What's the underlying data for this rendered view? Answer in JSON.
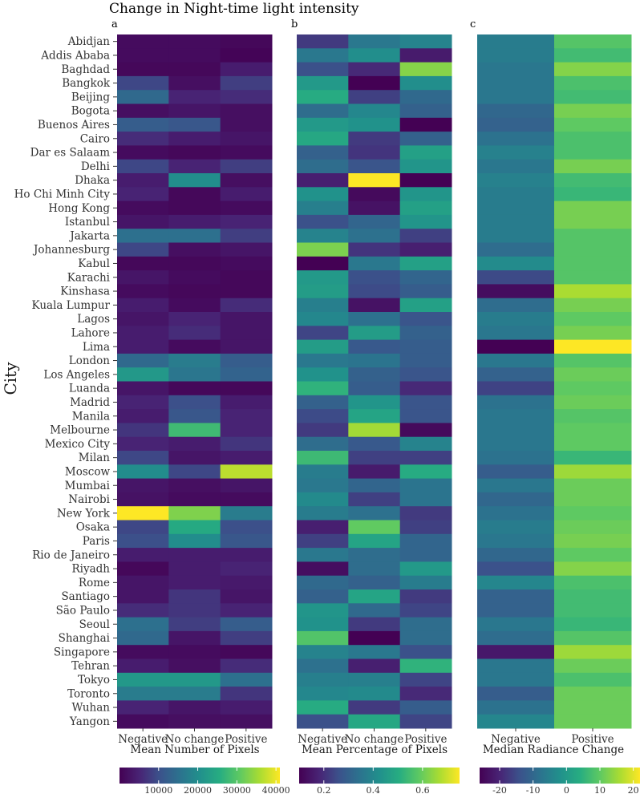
{
  "chart_data": {
    "type": "heatmap",
    "title": "Change in Night-time light intensity",
    "ylabel": "City",
    "cities": [
      "Abidjan",
      "Addis Ababa",
      "Baghdad",
      "Bangkok",
      "Beijing",
      "Bogota",
      "Buenos Aires",
      "Cairo",
      "Dar es Salaam",
      "Delhi",
      "Dhaka",
      "Ho Chi Minh City",
      "Hong Kong",
      "Istanbul",
      "Jakarta",
      "Johannesburg",
      "Kabul",
      "Karachi",
      "Kinshasa",
      "Kuala Lumpur",
      "Lagos",
      "Lahore",
      "Lima",
      "London",
      "Los Angeles",
      "Luanda",
      "Madrid",
      "Manila",
      "Melbourne",
      "Mexico City",
      "Milan",
      "Moscow",
      "Mumbai",
      "Nairobi",
      "New York",
      "Osaka",
      "Paris",
      "Rio de Janeiro",
      "Riyadh",
      "Rome",
      "Santiago",
      "São Paulo",
      "Seoul",
      "Shanghai",
      "Singapore",
      "Tehran",
      "Tokyo",
      "Toronto",
      "Wuhan",
      "Yangon"
    ],
    "panels": [
      {
        "letter": "a",
        "xlabel": "Mean Number of Pixels",
        "columns": [
          "Negative",
          "No change",
          "Positive"
        ],
        "colorbar": {
          "min": 0,
          "max": 41000,
          "ticks": [
            10000,
            20000,
            30000,
            40000
          ],
          "tick_labels": [
            "10000",
            "20000",
            "30000",
            "40000"
          ]
        },
        "values": [
          [
            1500,
            1500,
            1000
          ],
          [
            1500,
            1500,
            500
          ],
          [
            1000,
            1000,
            4000
          ],
          [
            9000,
            2000,
            8000
          ],
          [
            14000,
            5000,
            6000
          ],
          [
            2000,
            3000,
            2000
          ],
          [
            12000,
            11000,
            2000
          ],
          [
            6000,
            4000,
            3000
          ],
          [
            1500,
            1000,
            1500
          ],
          [
            9000,
            5000,
            8000
          ],
          [
            4000,
            20000,
            2000
          ],
          [
            5000,
            1000,
            4000
          ],
          [
            1500,
            1000,
            1500
          ],
          [
            3000,
            4000,
            5000
          ],
          [
            15000,
            15000,
            8000
          ],
          [
            9000,
            2000,
            3000
          ],
          [
            1000,
            1000,
            1500
          ],
          [
            3000,
            1500,
            1000
          ],
          [
            1500,
            1000,
            1000
          ],
          [
            4000,
            1500,
            6000
          ],
          [
            3000,
            5000,
            3000
          ],
          [
            4000,
            6000,
            3000
          ],
          [
            4000,
            1500,
            3000
          ],
          [
            14000,
            17000,
            12000
          ],
          [
            22000,
            16000,
            13000
          ],
          [
            3000,
            1000,
            1000
          ],
          [
            5000,
            10000,
            4000
          ],
          [
            4000,
            11000,
            5000
          ],
          [
            7000,
            28000,
            5000
          ],
          [
            5000,
            4000,
            7000
          ],
          [
            9000,
            3000,
            4000
          ],
          [
            20000,
            9000,
            37000
          ],
          [
            3000,
            2000,
            3000
          ],
          [
            2500,
            1500,
            1500
          ],
          [
            41000,
            33000,
            17000
          ],
          [
            9000,
            25000,
            10000
          ],
          [
            10000,
            20000,
            11000
          ],
          [
            4000,
            4000,
            4000
          ],
          [
            1000,
            4000,
            5000
          ],
          [
            3000,
            4000,
            3500
          ],
          [
            3000,
            7000,
            3000
          ],
          [
            6000,
            7000,
            5000
          ],
          [
            15000,
            8000,
            12000
          ],
          [
            14000,
            3000,
            8000
          ],
          [
            1500,
            1500,
            1000
          ],
          [
            4000,
            2000,
            6000
          ],
          [
            22000,
            22000,
            15000
          ],
          [
            17000,
            17000,
            7000
          ],
          [
            5000,
            3000,
            4000
          ],
          [
            1500,
            2000,
            2000
          ]
        ]
      },
      {
        "letter": "b",
        "xlabel": "Mean Percentage of Pixels",
        "columns": [
          "Negative",
          "No change",
          "Positive"
        ],
        "colorbar": {
          "min": 0.1,
          "max": 0.75,
          "ticks": [
            0.2,
            0.4,
            0.6
          ],
          "tick_labels": [
            "0.2",
            "0.4",
            "0.6"
          ]
        },
        "values": [
          [
            0.22,
            0.36,
            0.39
          ],
          [
            0.36,
            0.42,
            0.16
          ],
          [
            0.26,
            0.19,
            0.63
          ],
          [
            0.45,
            0.1,
            0.42
          ],
          [
            0.5,
            0.23,
            0.32
          ],
          [
            0.33,
            0.4,
            0.3
          ],
          [
            0.45,
            0.43,
            0.1
          ],
          [
            0.49,
            0.22,
            0.3
          ],
          [
            0.3,
            0.21,
            0.47
          ],
          [
            0.33,
            0.27,
            0.44
          ],
          [
            0.17,
            0.75,
            0.09
          ],
          [
            0.43,
            0.12,
            0.44
          ],
          [
            0.38,
            0.14,
            0.47
          ],
          [
            0.26,
            0.31,
            0.44
          ],
          [
            0.39,
            0.34,
            0.23
          ],
          [
            0.62,
            0.21,
            0.17
          ],
          [
            0.1,
            0.36,
            0.47
          ],
          [
            0.45,
            0.26,
            0.31
          ],
          [
            0.46,
            0.25,
            0.29
          ],
          [
            0.38,
            0.14,
            0.47
          ],
          [
            0.4,
            0.34,
            0.27
          ],
          [
            0.24,
            0.46,
            0.3
          ],
          [
            0.46,
            0.28,
            0.29
          ],
          [
            0.36,
            0.35,
            0.29
          ],
          [
            0.43,
            0.3,
            0.27
          ],
          [
            0.52,
            0.29,
            0.19
          ],
          [
            0.3,
            0.44,
            0.27
          ],
          [
            0.25,
            0.48,
            0.27
          ],
          [
            0.22,
            0.66,
            0.12
          ],
          [
            0.33,
            0.28,
            0.39
          ],
          [
            0.54,
            0.23,
            0.23
          ],
          [
            0.37,
            0.16,
            0.5
          ],
          [
            0.36,
            0.31,
            0.35
          ],
          [
            0.41,
            0.23,
            0.35
          ],
          [
            0.37,
            0.34,
            0.22
          ],
          [
            0.17,
            0.59,
            0.23
          ],
          [
            0.23,
            0.48,
            0.31
          ],
          [
            0.36,
            0.33,
            0.31
          ],
          [
            0.13,
            0.33,
            0.45
          ],
          [
            0.32,
            0.3,
            0.37
          ],
          [
            0.3,
            0.48,
            0.22
          ],
          [
            0.44,
            0.32,
            0.24
          ],
          [
            0.43,
            0.22,
            0.33
          ],
          [
            0.57,
            0.09,
            0.33
          ],
          [
            0.39,
            0.36,
            0.26
          ],
          [
            0.34,
            0.17,
            0.52
          ],
          [
            0.38,
            0.38,
            0.24
          ],
          [
            0.4,
            0.41,
            0.19
          ],
          [
            0.5,
            0.22,
            0.29
          ],
          [
            0.26,
            0.49,
            0.24
          ]
        ]
      },
      {
        "letter": "c",
        "xlabel": "Median Radiance Change",
        "columns": [
          "Negative",
          "Positive"
        ],
        "colorbar": {
          "min": -26,
          "max": 22,
          "ticks": [
            -20,
            -10,
            0,
            10,
            20
          ],
          "tick_labels": [
            "-20",
            "-10",
            "0",
            "10",
            "20"
          ]
        },
        "values": [
          [
            -6,
            9
          ],
          [
            -6,
            7
          ],
          [
            -7,
            13
          ],
          [
            -7,
            8
          ],
          [
            -7,
            7
          ],
          [
            -10,
            12
          ],
          [
            -11,
            10
          ],
          [
            -8,
            8
          ],
          [
            -5,
            8
          ],
          [
            -7,
            12
          ],
          [
            -5,
            7
          ],
          [
            -6,
            6
          ],
          [
            -6,
            12
          ],
          [
            -6,
            12
          ],
          [
            -6,
            9
          ],
          [
            -9,
            9
          ],
          [
            -3,
            9
          ],
          [
            -15,
            9
          ],
          [
            -24,
            16
          ],
          [
            -9,
            12
          ],
          [
            -6,
            10
          ],
          [
            -7,
            12
          ],
          [
            -26,
            22
          ],
          [
            -7,
            9
          ],
          [
            -11,
            11
          ],
          [
            -16,
            10
          ],
          [
            -8,
            11
          ],
          [
            -7,
            9
          ],
          [
            -7,
            10
          ],
          [
            -7,
            10
          ],
          [
            -8,
            6
          ],
          [
            -12,
            15
          ],
          [
            -7,
            11
          ],
          [
            -10,
            11
          ],
          [
            -8,
            10
          ],
          [
            -6,
            11
          ],
          [
            -7,
            12
          ],
          [
            -10,
            10
          ],
          [
            -14,
            13
          ],
          [
            -4,
            8
          ],
          [
            -11,
            7
          ],
          [
            -11,
            7
          ],
          [
            -7,
            6
          ],
          [
            -9,
            9
          ],
          [
            -22,
            15
          ],
          [
            -7,
            11
          ],
          [
            -7,
            8
          ],
          [
            -12,
            11
          ],
          [
            -8,
            11
          ],
          [
            -4,
            11
          ]
        ]
      }
    ]
  }
}
